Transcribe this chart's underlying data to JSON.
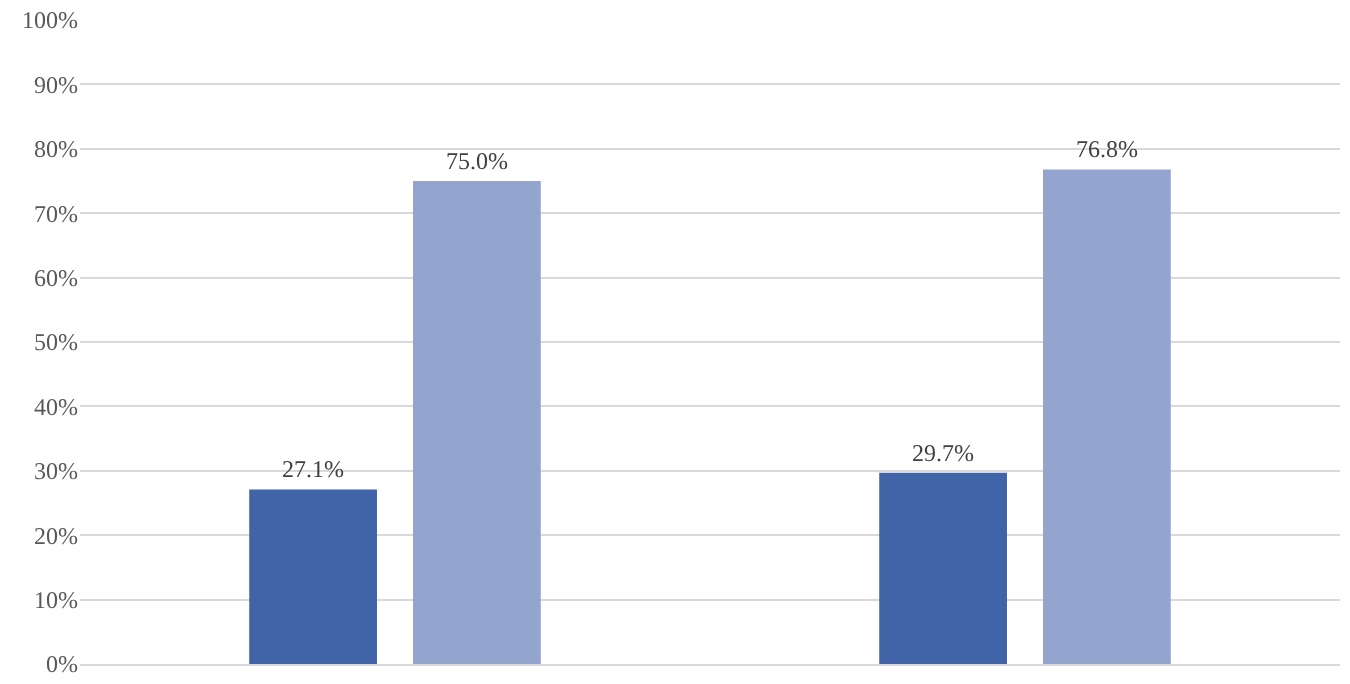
{
  "chart_data": {
    "type": "bar",
    "categories": [
      null,
      null
    ],
    "series": [
      {
        "color": "#4163a8",
        "values": [
          27.1,
          29.7
        ],
        "value_labels": [
          "27.1%",
          "29.7%"
        ]
      },
      {
        "color": "#93a4cf",
        "values": [
          75.0,
          76.8
        ],
        "value_labels": [
          "75.0%",
          "76.8%"
        ]
      }
    ],
    "ylim": [
      0,
      100
    ],
    "yticks": [
      {
        "value": 0,
        "label": "0%"
      },
      {
        "value": 10,
        "label": "10%"
      },
      {
        "value": 20,
        "label": "20%"
      },
      {
        "value": 30,
        "label": "30%"
      },
      {
        "value": 40,
        "label": "40%"
      },
      {
        "value": 50,
        "label": "50%"
      },
      {
        "value": 60,
        "label": "60%"
      },
      {
        "value": 70,
        "label": "70%"
      },
      {
        "value": 80,
        "label": "80%"
      },
      {
        "value": 90,
        "label": "90%"
      },
      {
        "value": 100,
        "label": "100%"
      }
    ],
    "grid": "y"
  }
}
